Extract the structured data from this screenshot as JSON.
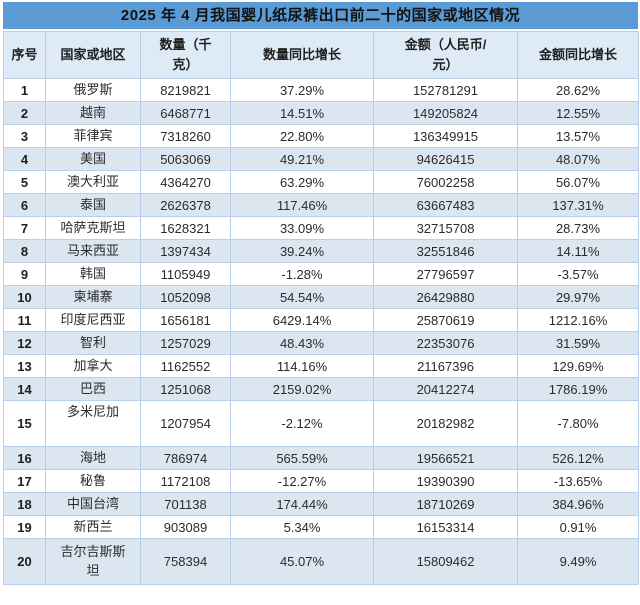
{
  "title": "2025 年 4 月我国婴儿纸尿裤出口前二十的国家或地区情况",
  "colors": {
    "title_bar_bg": "#5B9BD5",
    "title_text": "#121212",
    "header_bg": "#DEEBF7",
    "banded_row_bg": "#DCE6F1",
    "white_row_bg": "#FFFFFF",
    "border": "#9CC2E5",
    "body_text": "#2B2B2B"
  },
  "chart_data": {
    "type": "table",
    "title": "2025 年 4 月我国婴儿纸尿裤出口前二十的国家或地区情况",
    "columns": [
      "序号",
      "国家或地区",
      "数量（千\n克）",
      "数量同比增长",
      "金额（人民币/\n元）",
      "金额同比增长"
    ],
    "rows": [
      {
        "rank": "1",
        "country": "俄罗斯",
        "qty": "8219821",
        "qty_yoy": "37.29%",
        "amount": "152781291",
        "amount_yoy": "28.62%"
      },
      {
        "rank": "2",
        "country": "越南",
        "qty": "6468771",
        "qty_yoy": "14.51%",
        "amount": "149205824",
        "amount_yoy": "12.55%"
      },
      {
        "rank": "3",
        "country": "菲律宾",
        "qty": "7318260",
        "qty_yoy": "22.80%",
        "amount": "136349915",
        "amount_yoy": "13.57%"
      },
      {
        "rank": "4",
        "country": "美国",
        "qty": "5063069",
        "qty_yoy": "49.21%",
        "amount": "94626415",
        "amount_yoy": "48.07%"
      },
      {
        "rank": "5",
        "country": "澳大利亚",
        "qty": "4364270",
        "qty_yoy": "63.29%",
        "amount": "76002258",
        "amount_yoy": "56.07%"
      },
      {
        "rank": "6",
        "country": "泰国",
        "qty": "2626378",
        "qty_yoy": "117.46%",
        "amount": "63667483",
        "amount_yoy": "137.31%"
      },
      {
        "rank": "7",
        "country": "哈萨克斯坦",
        "qty": "1628321",
        "qty_yoy": "33.09%",
        "amount": "32715708",
        "amount_yoy": "28.73%"
      },
      {
        "rank": "8",
        "country": "马来西亚",
        "qty": "1397434",
        "qty_yoy": "39.24%",
        "amount": "32551846",
        "amount_yoy": "14.11%"
      },
      {
        "rank": "9",
        "country": "韩国",
        "qty": "1105949",
        "qty_yoy": "-1.28%",
        "amount": "27796597",
        "amount_yoy": "-3.57%"
      },
      {
        "rank": "10",
        "country": "柬埔寨",
        "qty": "1052098",
        "qty_yoy": "54.54%",
        "amount": "26429880",
        "amount_yoy": "29.97%"
      },
      {
        "rank": "11",
        "country": "印度尼西亚",
        "qty": "1656181",
        "qty_yoy": "6429.14%",
        "amount": "25870619",
        "amount_yoy": "1212.16%"
      },
      {
        "rank": "12",
        "country": "智利",
        "qty": "1257029",
        "qty_yoy": "48.43%",
        "amount": "22353076",
        "amount_yoy": "31.59%"
      },
      {
        "rank": "13",
        "country": "加拿大",
        "qty": "1162552",
        "qty_yoy": "114.16%",
        "amount": "21167396",
        "amount_yoy": "129.69%"
      },
      {
        "rank": "14",
        "country": "巴西",
        "qty": "1251068",
        "qty_yoy": "2159.02%",
        "amount": "20412274",
        "amount_yoy": "1786.19%"
      },
      {
        "rank": "15",
        "country": "多米尼加",
        "qty": "1207954",
        "qty_yoy": "-2.12%",
        "amount": "20182982",
        "amount_yoy": "-7.80%",
        "tall": true,
        "country_top": true
      },
      {
        "rank": "16",
        "country": "海地",
        "qty": "786974",
        "qty_yoy": "565.59%",
        "amount": "19566521",
        "amount_yoy": "526.12%"
      },
      {
        "rank": "17",
        "country": "秘鲁",
        "qty": "1172108",
        "qty_yoy": "-12.27%",
        "amount": "19390390",
        "amount_yoy": "-13.65%"
      },
      {
        "rank": "18",
        "country": "中国台湾",
        "qty": "701138",
        "qty_yoy": "174.44%",
        "amount": "18710269",
        "amount_yoy": "384.96%"
      },
      {
        "rank": "19",
        "country": "新西兰",
        "qty": "903089",
        "qty_yoy": "5.34%",
        "amount": "16153314",
        "amount_yoy": "0.91%"
      },
      {
        "rank": "20",
        "country": "吉尔吉斯斯\n坦",
        "qty": "758394",
        "qty_yoy": "45.07%",
        "amount": "15809462",
        "amount_yoy": "9.49%",
        "tall": true
      }
    ]
  }
}
